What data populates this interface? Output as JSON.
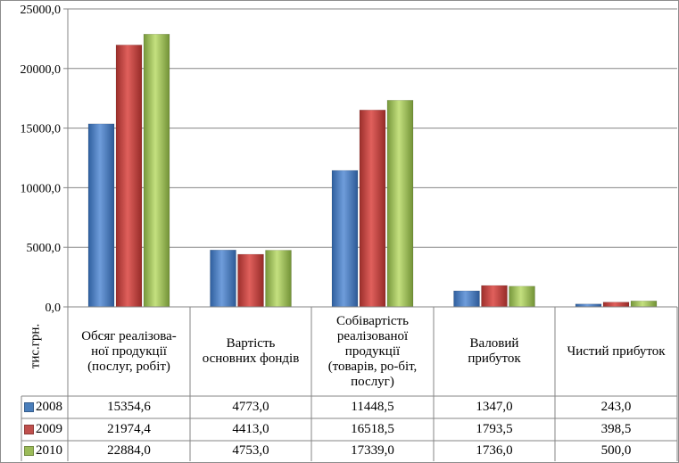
{
  "chart_data": {
    "type": "bar",
    "y_tick_labels": [
      "0,0",
      "5000,0",
      "10000,0",
      "15000,0",
      "20000,0",
      "25000,0"
    ],
    "ylim": [
      0,
      25000
    ],
    "grid": true,
    "unit_label": "тис.грн.",
    "categories": [
      [
        "Обсяг реалізова-",
        "ної продукції",
        "(послуг, робіт)"
      ],
      [
        "Вартість",
        "основних фондів"
      ],
      [
        "Собівартість",
        "реалізованої",
        "продукції",
        "(товарів, ро-біт,",
        "послуг)"
      ],
      [
        "Валовий",
        "прибуток"
      ],
      [
        "Чистий прибуток"
      ]
    ],
    "series": [
      {
        "name": "2008",
        "color": "#4a7ebb",
        "values": [
          15354.6,
          4773.0,
          11448.5,
          1347.0,
          243.0
        ],
        "labels": [
          "15354,6",
          "4773,0",
          "11448,5",
          "1347,0",
          "243,0"
        ]
      },
      {
        "name": "2009",
        "color": "#c0504d",
        "values": [
          21974.4,
          4413.0,
          16518.5,
          1793.5,
          398.5
        ],
        "labels": [
          "21974,4",
          "4413,0",
          "16518,5",
          "1793,5",
          "398,5"
        ]
      },
      {
        "name": "2010",
        "color": "#9bbb59",
        "values": [
          22884.0,
          4753.0,
          17339.0,
          1736.0,
          500.0
        ],
        "labels": [
          "22884,0",
          "4753,0",
          "17339,0",
          "1736,0",
          "500,0"
        ]
      }
    ]
  }
}
